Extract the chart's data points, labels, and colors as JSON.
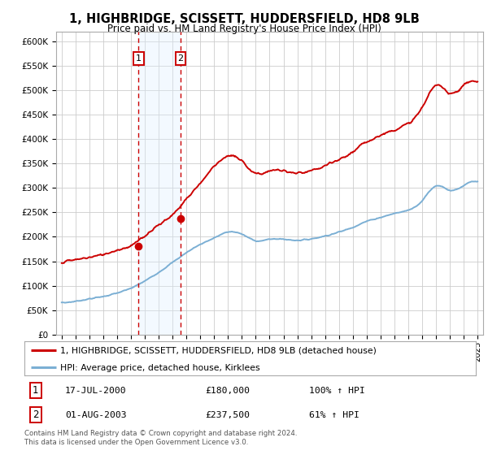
{
  "title": "1, HIGHBRIDGE, SCISSETT, HUDDERSFIELD, HD8 9LB",
  "subtitle": "Price paid vs. HM Land Registry's House Price Index (HPI)",
  "ylim": [
    0,
    620000
  ],
  "yticks": [
    0,
    50000,
    100000,
    150000,
    200000,
    250000,
    300000,
    350000,
    400000,
    450000,
    500000,
    550000,
    600000
  ],
  "ytick_labels": [
    "£0",
    "£50K",
    "£100K",
    "£150K",
    "£200K",
    "£250K",
    "£300K",
    "£350K",
    "£400K",
    "£450K",
    "£500K",
    "£550K",
    "£600K"
  ],
  "transaction1_date": 2000.54,
  "transaction1_price": 180000,
  "transaction1_label": "17-JUL-2000",
  "transaction1_amount": "£180,000",
  "transaction1_hpi": "100% ↑ HPI",
  "transaction2_date": 2003.58,
  "transaction2_price": 237500,
  "transaction2_label": "01-AUG-2003",
  "transaction2_amount": "£237,500",
  "transaction2_hpi": "61% ↑ HPI",
  "line1_color": "#cc0000",
  "line2_color": "#7bafd4",
  "shade_color": "#ddeeff",
  "grid_color": "#cccccc",
  "background_color": "#ffffff",
  "legend_line1": "1, HIGHBRIDGE, SCISSETT, HUDDERSFIELD, HD8 9LB (detached house)",
  "legend_line2": "HPI: Average price, detached house, Kirklees",
  "footer": "Contains HM Land Registry data © Crown copyright and database right 2024.\nThis data is licensed under the Open Government Licence v3.0.",
  "xstart": 1995,
  "xend": 2025,
  "hpi_years": [
    1995,
    1996,
    1997,
    1998,
    1999,
    2000,
    2001,
    2002,
    2003,
    2004,
    2005,
    2006,
    2007,
    2008,
    2009,
    2010,
    2011,
    2012,
    2013,
    2014,
    2015,
    2016,
    2017,
    2018,
    2019,
    2020,
    2021,
    2022,
    2023,
    2024,
    2025
  ],
  "hpi_vals": [
    65000,
    68000,
    73000,
    78000,
    85000,
    95000,
    110000,
    128000,
    148000,
    168000,
    185000,
    198000,
    210000,
    205000,
    192000,
    195000,
    195000,
    193000,
    196000,
    202000,
    210000,
    220000,
    232000,
    240000,
    248000,
    255000,
    275000,
    305000,
    295000,
    305000,
    312000
  ],
  "prop_years": [
    1995,
    1996,
    1997,
    1998,
    1999,
    2000,
    2001,
    2002,
    2003,
    2004,
    2005,
    2006,
    2007,
    2008,
    2009,
    2010,
    2011,
    2012,
    2013,
    2014,
    2015,
    2016,
    2017,
    2018,
    2019,
    2020,
    2021,
    2022,
    2023,
    2024,
    2025
  ],
  "prop_vals": [
    148000,
    153000,
    158000,
    164000,
    173000,
    182000,
    202000,
    225000,
    245000,
    278000,
    310000,
    345000,
    365000,
    355000,
    330000,
    335000,
    335000,
    330000,
    335000,
    345000,
    358000,
    374000,
    395000,
    408000,
    420000,
    432000,
    465000,
    510000,
    495000,
    510000,
    515000
  ]
}
